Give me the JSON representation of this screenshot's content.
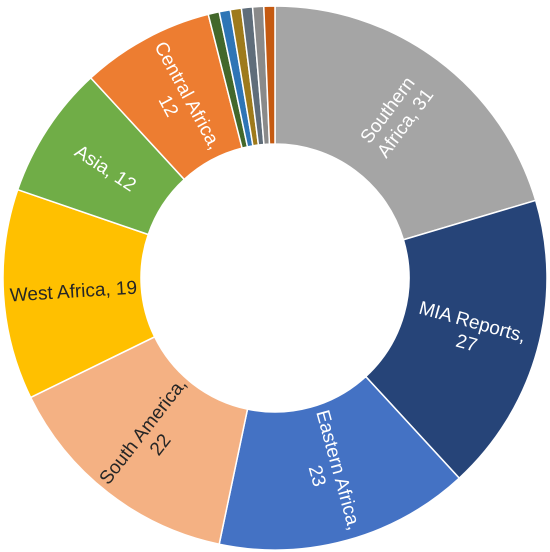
{
  "chart_data": {
    "type": "pie",
    "style": "donut",
    "series": [
      {
        "category": "Southern Africa",
        "value": 31,
        "color": "#A5A5A5",
        "label_lines": [
          "Southern",
          "Africa, 31"
        ],
        "label_color": "#ffffff"
      },
      {
        "category": "MIA Reports",
        "value": 27,
        "color": "#264478",
        "label_lines": [
          "MIA Reports,",
          "27"
        ],
        "label_color": "#ffffff"
      },
      {
        "category": "Eastern Africa",
        "value": 23,
        "color": "#4472C4",
        "label_lines": [
          "Eastern Africa,",
          "23"
        ],
        "label_color": "#ffffff"
      },
      {
        "category": "South America",
        "value": 22,
        "color": "#F4B183",
        "label_lines": [
          "South America,",
          "22"
        ],
        "label_color": "#262626"
      },
      {
        "category": "West Africa",
        "value": 19,
        "color": "#FFC000",
        "label_lines": [
          "West Africa, 19"
        ],
        "label_color": "#262626"
      },
      {
        "category": "Asia",
        "value": 12,
        "color": "#70AD47",
        "label_lines": [
          "Asia, 12"
        ],
        "label_color": "#ffffff"
      },
      {
        "category": "Central Africa",
        "value": 12,
        "color": "#ED7D31",
        "label_lines": [
          "Central Africa,",
          "12"
        ],
        "label_color": "#ffffff"
      },
      {
        "category": "",
        "value": 1,
        "color": "#43682B",
        "label_lines": [],
        "label_color": "#ffffff"
      },
      {
        "category": "",
        "value": 1,
        "color": "#2E75B6",
        "label_lines": [],
        "label_color": "#ffffff"
      },
      {
        "category": "",
        "value": 1,
        "color": "#9E7A1B",
        "label_lines": [],
        "label_color": "#ffffff"
      },
      {
        "category": "",
        "value": 1,
        "color": "#5F6D7A",
        "label_lines": [],
        "label_color": "#ffffff"
      },
      {
        "category": "",
        "value": 1,
        "color": "#8A8A8A",
        "label_lines": [],
        "label_color": "#ffffff"
      },
      {
        "category": "",
        "value": 1,
        "color": "#C55A11",
        "label_lines": [],
        "label_color": "#ffffff"
      }
    ],
    "title": "",
    "legend": "none"
  }
}
